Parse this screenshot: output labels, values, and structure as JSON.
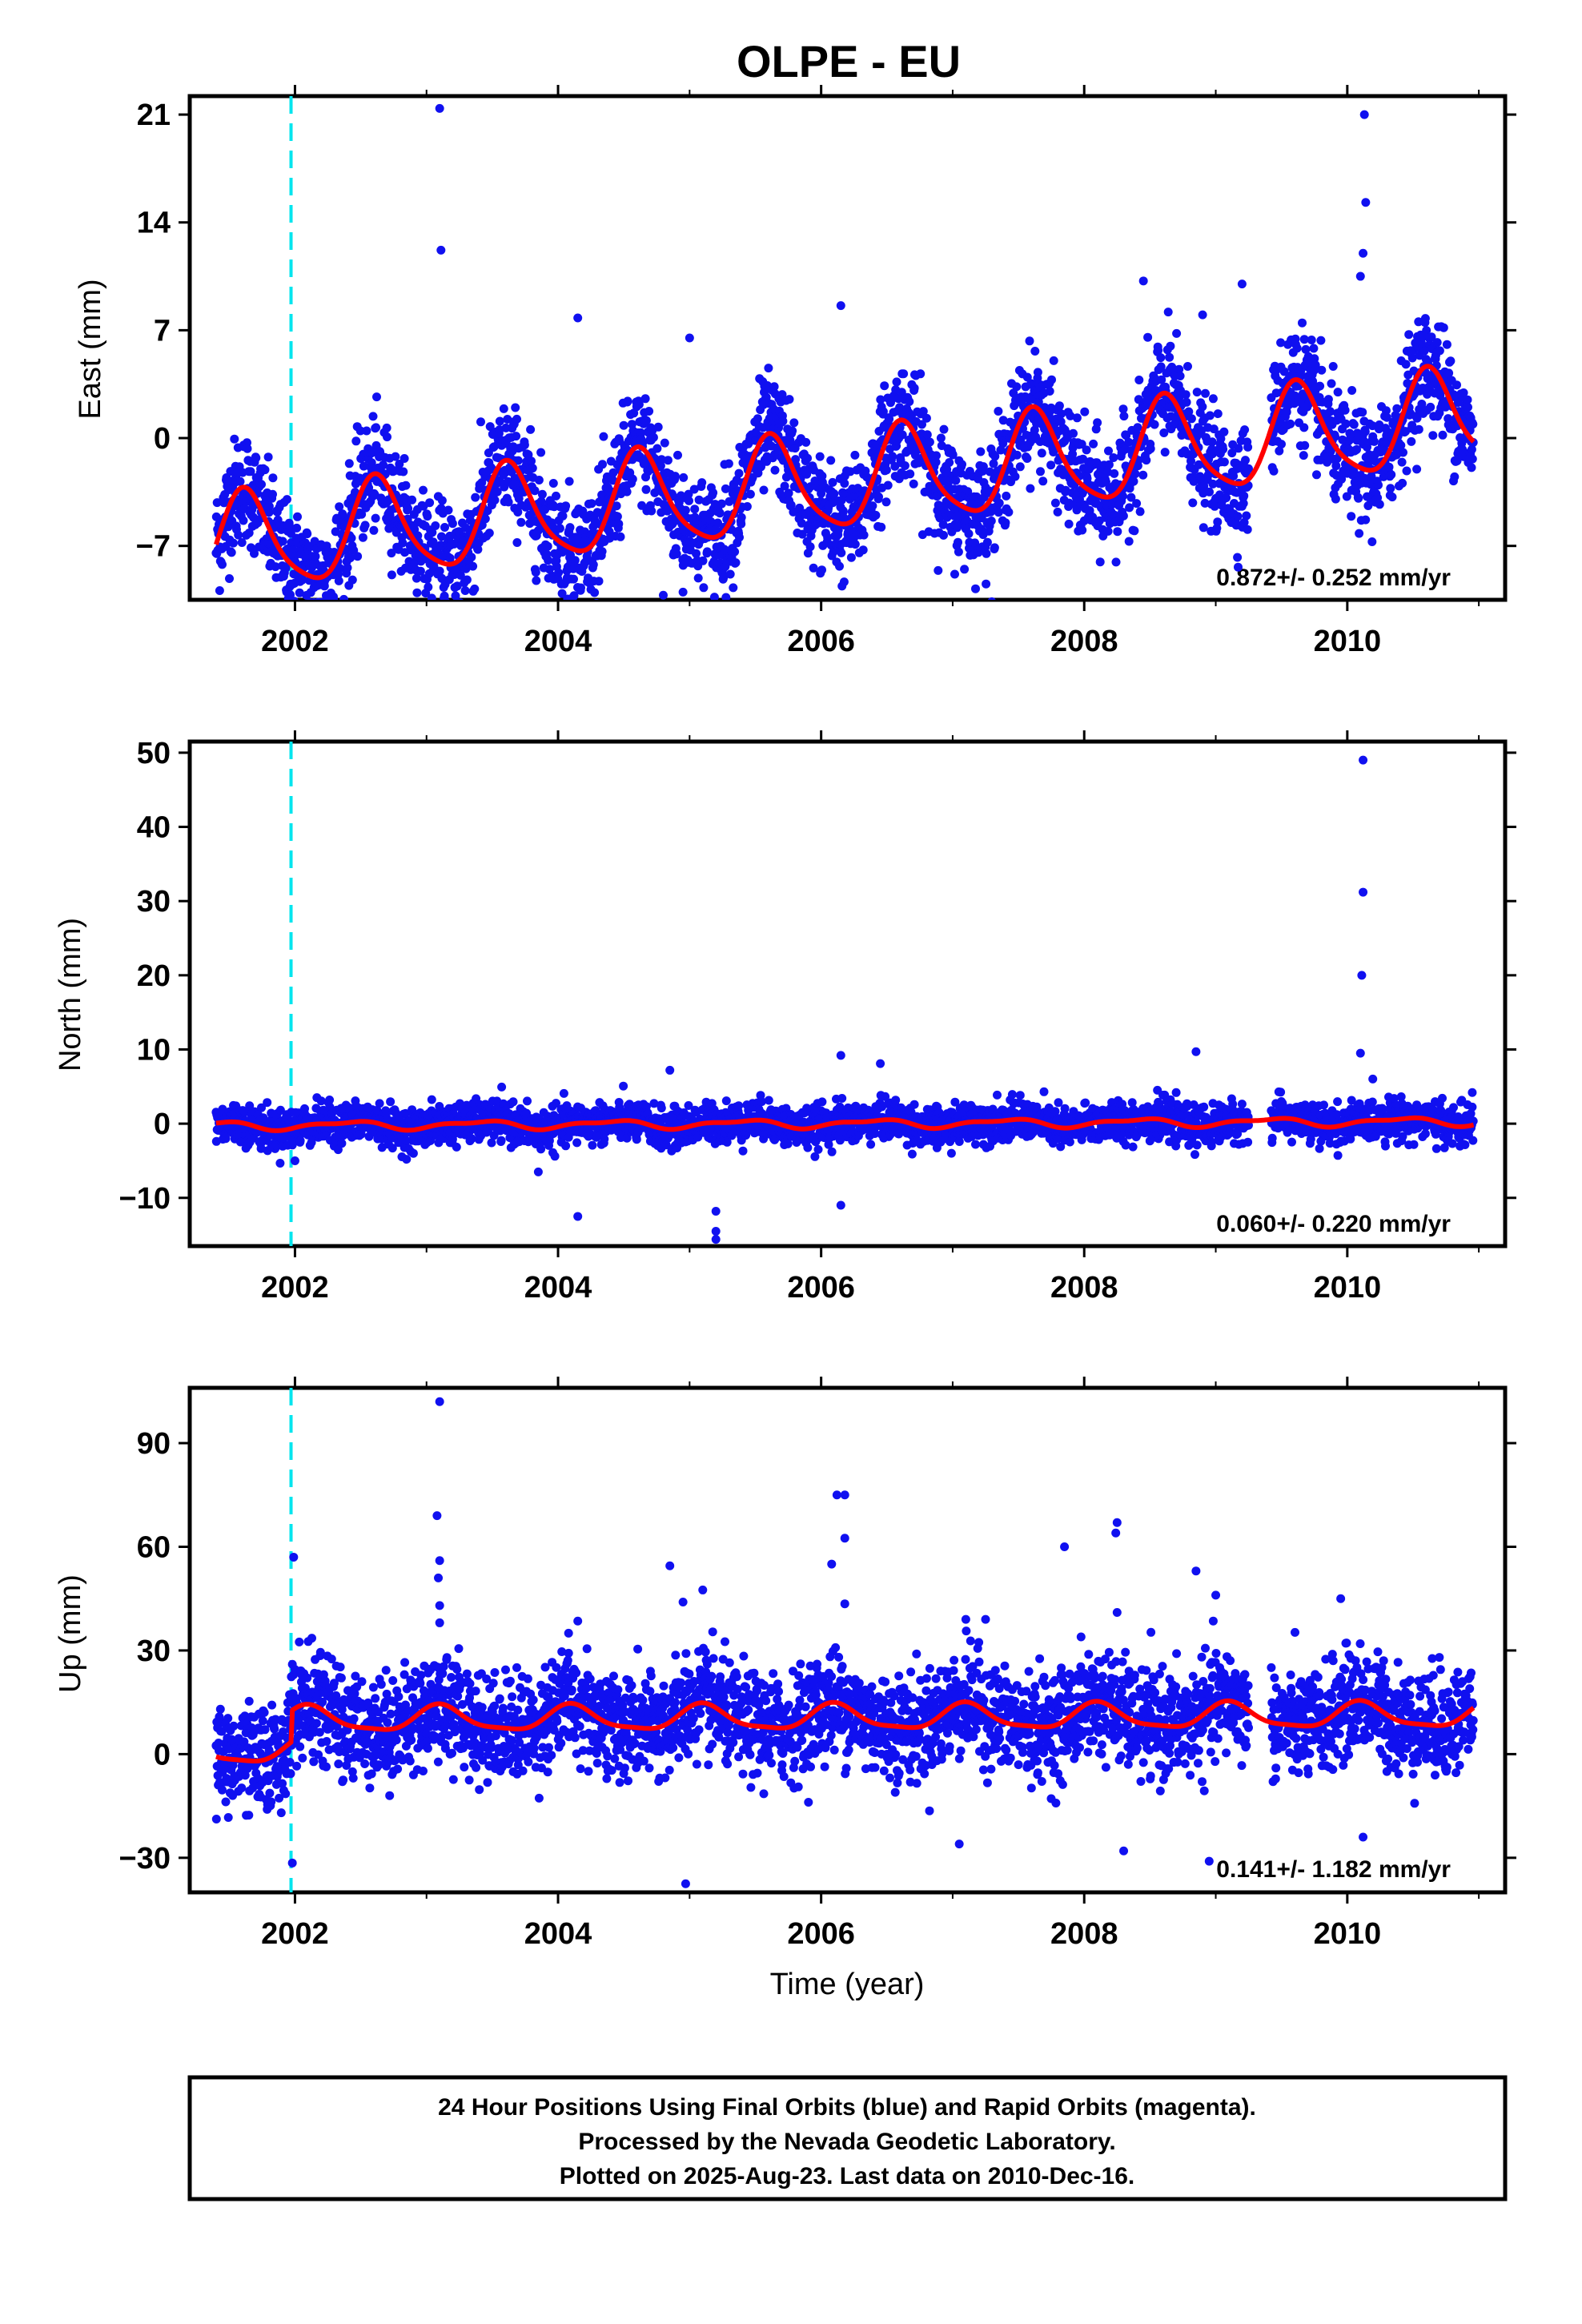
{
  "figure": {
    "title": "OLPE - EU",
    "xlabel": "Time (year)",
    "caption_lines": [
      "24 Hour Positions Using Final Orbits (blue) and Rapid Orbits (magenta).",
      "Processed by the Nevada Geodetic Laboratory.",
      "Plotted on 2025-Aug-23. Last data on 2010-Dec-16."
    ]
  },
  "colors": {
    "points": "#1010f0",
    "model": "#ff0000",
    "event_line": "#00e5ee",
    "frame": "#000000"
  },
  "chart_data": [
    {
      "type": "scatter",
      "name": "East",
      "ylabel": "East (mm)",
      "rate_text": "0.872+/- 0.252 mm/yr",
      "xlim": [
        2001.2,
        2011.2
      ],
      "ylim": [
        -10.5,
        22.2
      ],
      "xticks": [
        2002,
        2004,
        2006,
        2008,
        2010
      ],
      "yticks": [
        -7,
        0,
        7,
        14,
        21
      ],
      "event_x": [
        2001.97
      ],
      "start_year": 2001.4,
      "end_year": 2010.96,
      "model": {
        "offset": -3.0,
        "rate": 0.872,
        "ref_year": 2006.0,
        "annual_sin": -2.2,
        "annual_cos": -2.2,
        "semi_sin": 0.5,
        "semi_cos": 0.3,
        "steps": [
          {
            "x": 2001.97,
            "dy": 0.0
          }
        ]
      },
      "scatter_sigma": 1.8,
      "outliers": [
        {
          "x": 2003.1,
          "y": 21.4
        },
        {
          "x": 2003.11,
          "y": 12.2
        },
        {
          "x": 2004.15,
          "y": 7.8
        },
        {
          "x": 2005.0,
          "y": 6.5
        },
        {
          "x": 2006.15,
          "y": 8.6
        },
        {
          "x": 2008.45,
          "y": 10.2
        },
        {
          "x": 2008.9,
          "y": 8.0
        },
        {
          "x": 2009.2,
          "y": 10.0
        },
        {
          "x": 2010.13,
          "y": 21.0
        },
        {
          "x": 2010.14,
          "y": 15.3
        },
        {
          "x": 2010.12,
          "y": 12.0
        },
        {
          "x": 2010.1,
          "y": 10.5
        },
        {
          "x": 2004.8,
          "y": -10.2
        },
        {
          "x": 2004.95,
          "y": -10.0
        },
        {
          "x": 2001.95,
          "y": -10.4
        },
        {
          "x": 2010.15,
          "y": -3.8
        }
      ]
    },
    {
      "type": "scatter",
      "name": "North",
      "ylabel": "North (mm)",
      "rate_text": "0.060+/- 0.220 mm/yr",
      "xlim": [
        2001.2,
        2011.2
      ],
      "ylim": [
        -16.5,
        51.5
      ],
      "xticks": [
        2002,
        2004,
        2006,
        2008,
        2010
      ],
      "yticks": [
        -10,
        0,
        10,
        20,
        30,
        40,
        50
      ],
      "event_x": [
        2001.97
      ],
      "start_year": 2001.4,
      "end_year": 2010.96,
      "model": {
        "offset": 0.0,
        "rate": 0.06,
        "ref_year": 2006.0,
        "annual_sin": 0.3,
        "annual_cos": -0.4,
        "semi_sin": 0.2,
        "semi_cos": 0.1,
        "steps": []
      },
      "scatter_sigma": 1.3,
      "outliers": [
        {
          "x": 2004.85,
          "y": 7.2
        },
        {
          "x": 2006.15,
          "y": 9.2
        },
        {
          "x": 2006.45,
          "y": 8.1
        },
        {
          "x": 2008.85,
          "y": 9.7
        },
        {
          "x": 2010.12,
          "y": 49.0
        },
        {
          "x": 2010.12,
          "y": 31.2
        },
        {
          "x": 2010.11,
          "y": 20.0
        },
        {
          "x": 2010.1,
          "y": 9.5
        },
        {
          "x": 2003.85,
          "y": -6.5
        },
        {
          "x": 2004.15,
          "y": -12.5
        },
        {
          "x": 2005.2,
          "y": -11.8
        },
        {
          "x": 2005.2,
          "y": -14.5
        },
        {
          "x": 2005.2,
          "y": -15.6
        },
        {
          "x": 2006.15,
          "y": -11.0
        },
        {
          "x": 2002.0,
          "y": -5.0
        },
        {
          "x": 2010.95,
          "y": 4.2
        }
      ]
    },
    {
      "type": "scatter",
      "name": "Up",
      "ylabel": "Up (mm)",
      "rate_text": "0.141+/- 1.182 mm/yr",
      "xlim": [
        2001.2,
        2011.2
      ],
      "ylim": [
        -40.0,
        106.0
      ],
      "xticks": [
        2002,
        2004,
        2006,
        2008,
        2010
      ],
      "yticks": [
        -30,
        0,
        30,
        60,
        90
      ],
      "event_x": [
        2001.97
      ],
      "start_year": 2001.4,
      "end_year": 2010.96,
      "model": {
        "offset": 1.5,
        "rate": 0.141,
        "ref_year": 2006.0,
        "annual_sin": 2.2,
        "annual_cos": 2.8,
        "semi_sin": 0.8,
        "semi_cos": 0.5,
        "steps": [
          {
            "x": 2001.97,
            "dy": 9.0
          }
        ]
      },
      "scatter_sigma": 7.5,
      "outliers": [
        {
          "x": 2001.99,
          "y": 57.0
        },
        {
          "x": 2001.98,
          "y": 26.0
        },
        {
          "x": 2001.98,
          "y": -31.5
        },
        {
          "x": 2003.1,
          "y": 102.0
        },
        {
          "x": 2003.08,
          "y": 69.0
        },
        {
          "x": 2003.1,
          "y": 56.0
        },
        {
          "x": 2003.09,
          "y": 51.0
        },
        {
          "x": 2003.1,
          "y": 43.0
        },
        {
          "x": 2003.1,
          "y": 38.0
        },
        {
          "x": 2004.08,
          "y": 35.0
        },
        {
          "x": 2004.15,
          "y": 38.5
        },
        {
          "x": 2004.85,
          "y": 54.5
        },
        {
          "x": 2004.95,
          "y": 44.0
        },
        {
          "x": 2005.1,
          "y": 47.5
        },
        {
          "x": 2004.97,
          "y": -37.5
        },
        {
          "x": 2006.08,
          "y": 55.0
        },
        {
          "x": 2006.12,
          "y": 75.0
        },
        {
          "x": 2006.18,
          "y": 75.0
        },
        {
          "x": 2006.18,
          "y": 62.5
        },
        {
          "x": 2006.18,
          "y": 43.5
        },
        {
          "x": 2007.1,
          "y": 39.0
        },
        {
          "x": 2007.25,
          "y": 39.0
        },
        {
          "x": 2007.85,
          "y": 60.0
        },
        {
          "x": 2008.25,
          "y": 67.0
        },
        {
          "x": 2008.24,
          "y": 64.0
        },
        {
          "x": 2008.25,
          "y": 41.0
        },
        {
          "x": 2008.85,
          "y": 53.0
        },
        {
          "x": 2009.0,
          "y": 46.0
        },
        {
          "x": 2008.95,
          "y": -31.0
        },
        {
          "x": 2009.95,
          "y": 45.0
        },
        {
          "x": 2010.7,
          "y": 28.0
        },
        {
          "x": 2007.05,
          "y": -26.0
        },
        {
          "x": 2008.3,
          "y": -28.0
        },
        {
          "x": 2010.12,
          "y": -24.0
        }
      ]
    }
  ]
}
